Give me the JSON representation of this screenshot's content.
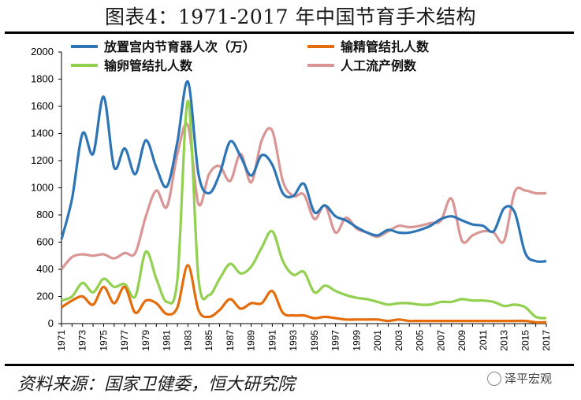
{
  "title": "图表4：1971-2017 年中国节育手术结构",
  "source": "资料来源：国家卫健委，恒大研究院",
  "watermark": "泽平宏观",
  "chart_data": {
    "type": "line",
    "title": "图表4：1971-2017 年中国节育手术结构",
    "xlabel": "",
    "ylabel": "",
    "ylim": [
      0,
      2000
    ],
    "yticks": [
      0,
      200,
      400,
      600,
      800,
      1000,
      1200,
      1400,
      1600,
      1800,
      2000
    ],
    "x": [
      1971,
      1972,
      1973,
      1974,
      1975,
      1976,
      1977,
      1978,
      1979,
      1980,
      1981,
      1982,
      1983,
      1984,
      1985,
      1986,
      1987,
      1988,
      1989,
      1990,
      1991,
      1992,
      1993,
      1994,
      1995,
      1996,
      1997,
      1998,
      1999,
      2000,
      2001,
      2002,
      2003,
      2004,
      2005,
      2006,
      2007,
      2008,
      2009,
      2010,
      2011,
      2012,
      2013,
      2014,
      2015,
      2016,
      2017
    ],
    "xtick_labels": [
      "1971",
      "1973",
      "1975",
      "1977",
      "1979",
      "1981",
      "1983",
      "1985",
      "1987",
      "1989",
      "1991",
      "1993",
      "1995",
      "1997",
      "1999",
      "2001",
      "2003",
      "2005",
      "2007",
      "2009",
      "2011",
      "2013",
      "2015",
      "2017"
    ],
    "legend_position": "top",
    "series": [
      {
        "name": "放置宫内节育器人次（万）",
        "color": "#2E75B6",
        "values": [
          620,
          920,
          1400,
          1250,
          1670,
          1150,
          1290,
          1100,
          1350,
          1150,
          1010,
          1340,
          1780,
          1100,
          960,
          1100,
          1340,
          1230,
          1090,
          1240,
          1170,
          960,
          940,
          1030,
          820,
          870,
          790,
          760,
          710,
          670,
          650,
          690,
          670,
          670,
          690,
          720,
          770,
          790,
          760,
          730,
          720,
          680,
          850,
          820,
          520,
          460,
          460
        ]
      },
      {
        "name": "输精管结扎人数",
        "color": "#E46C0A",
        "values": [
          120,
          170,
          200,
          140,
          270,
          150,
          270,
          80,
          170,
          150,
          70,
          120,
          430,
          100,
          50,
          100,
          180,
          110,
          150,
          150,
          240,
          80,
          60,
          60,
          40,
          50,
          40,
          30,
          30,
          30,
          30,
          20,
          30,
          20,
          20,
          20,
          20,
          20,
          20,
          20,
          20,
          20,
          20,
          20,
          20,
          10,
          10
        ]
      },
      {
        "name": "输卵管结扎人数",
        "color": "#92D050",
        "values": [
          170,
          200,
          300,
          230,
          330,
          270,
          290,
          200,
          530,
          330,
          160,
          330,
          1640,
          330,
          210,
          330,
          440,
          370,
          420,
          560,
          680,
          460,
          360,
          380,
          230,
          280,
          240,
          210,
          190,
          180,
          160,
          140,
          150,
          150,
          140,
          140,
          160,
          160,
          180,
          170,
          170,
          160,
          130,
          140,
          120,
          50,
          40
        ]
      },
      {
        "name": "人工流产例数",
        "color": "#D99694",
        "values": [
          400,
          490,
          510,
          500,
          510,
          480,
          520,
          520,
          790,
          980,
          860,
          1250,
          1460,
          880,
          1100,
          1160,
          1050,
          1250,
          1040,
          1350,
          1420,
          1050,
          940,
          950,
          770,
          870,
          670,
          780,
          700,
          670,
          640,
          680,
          720,
          710,
          720,
          740,
          760,
          920,
          610,
          650,
          680,
          670,
          610,
          970,
          980,
          960,
          960
        ]
      }
    ]
  }
}
